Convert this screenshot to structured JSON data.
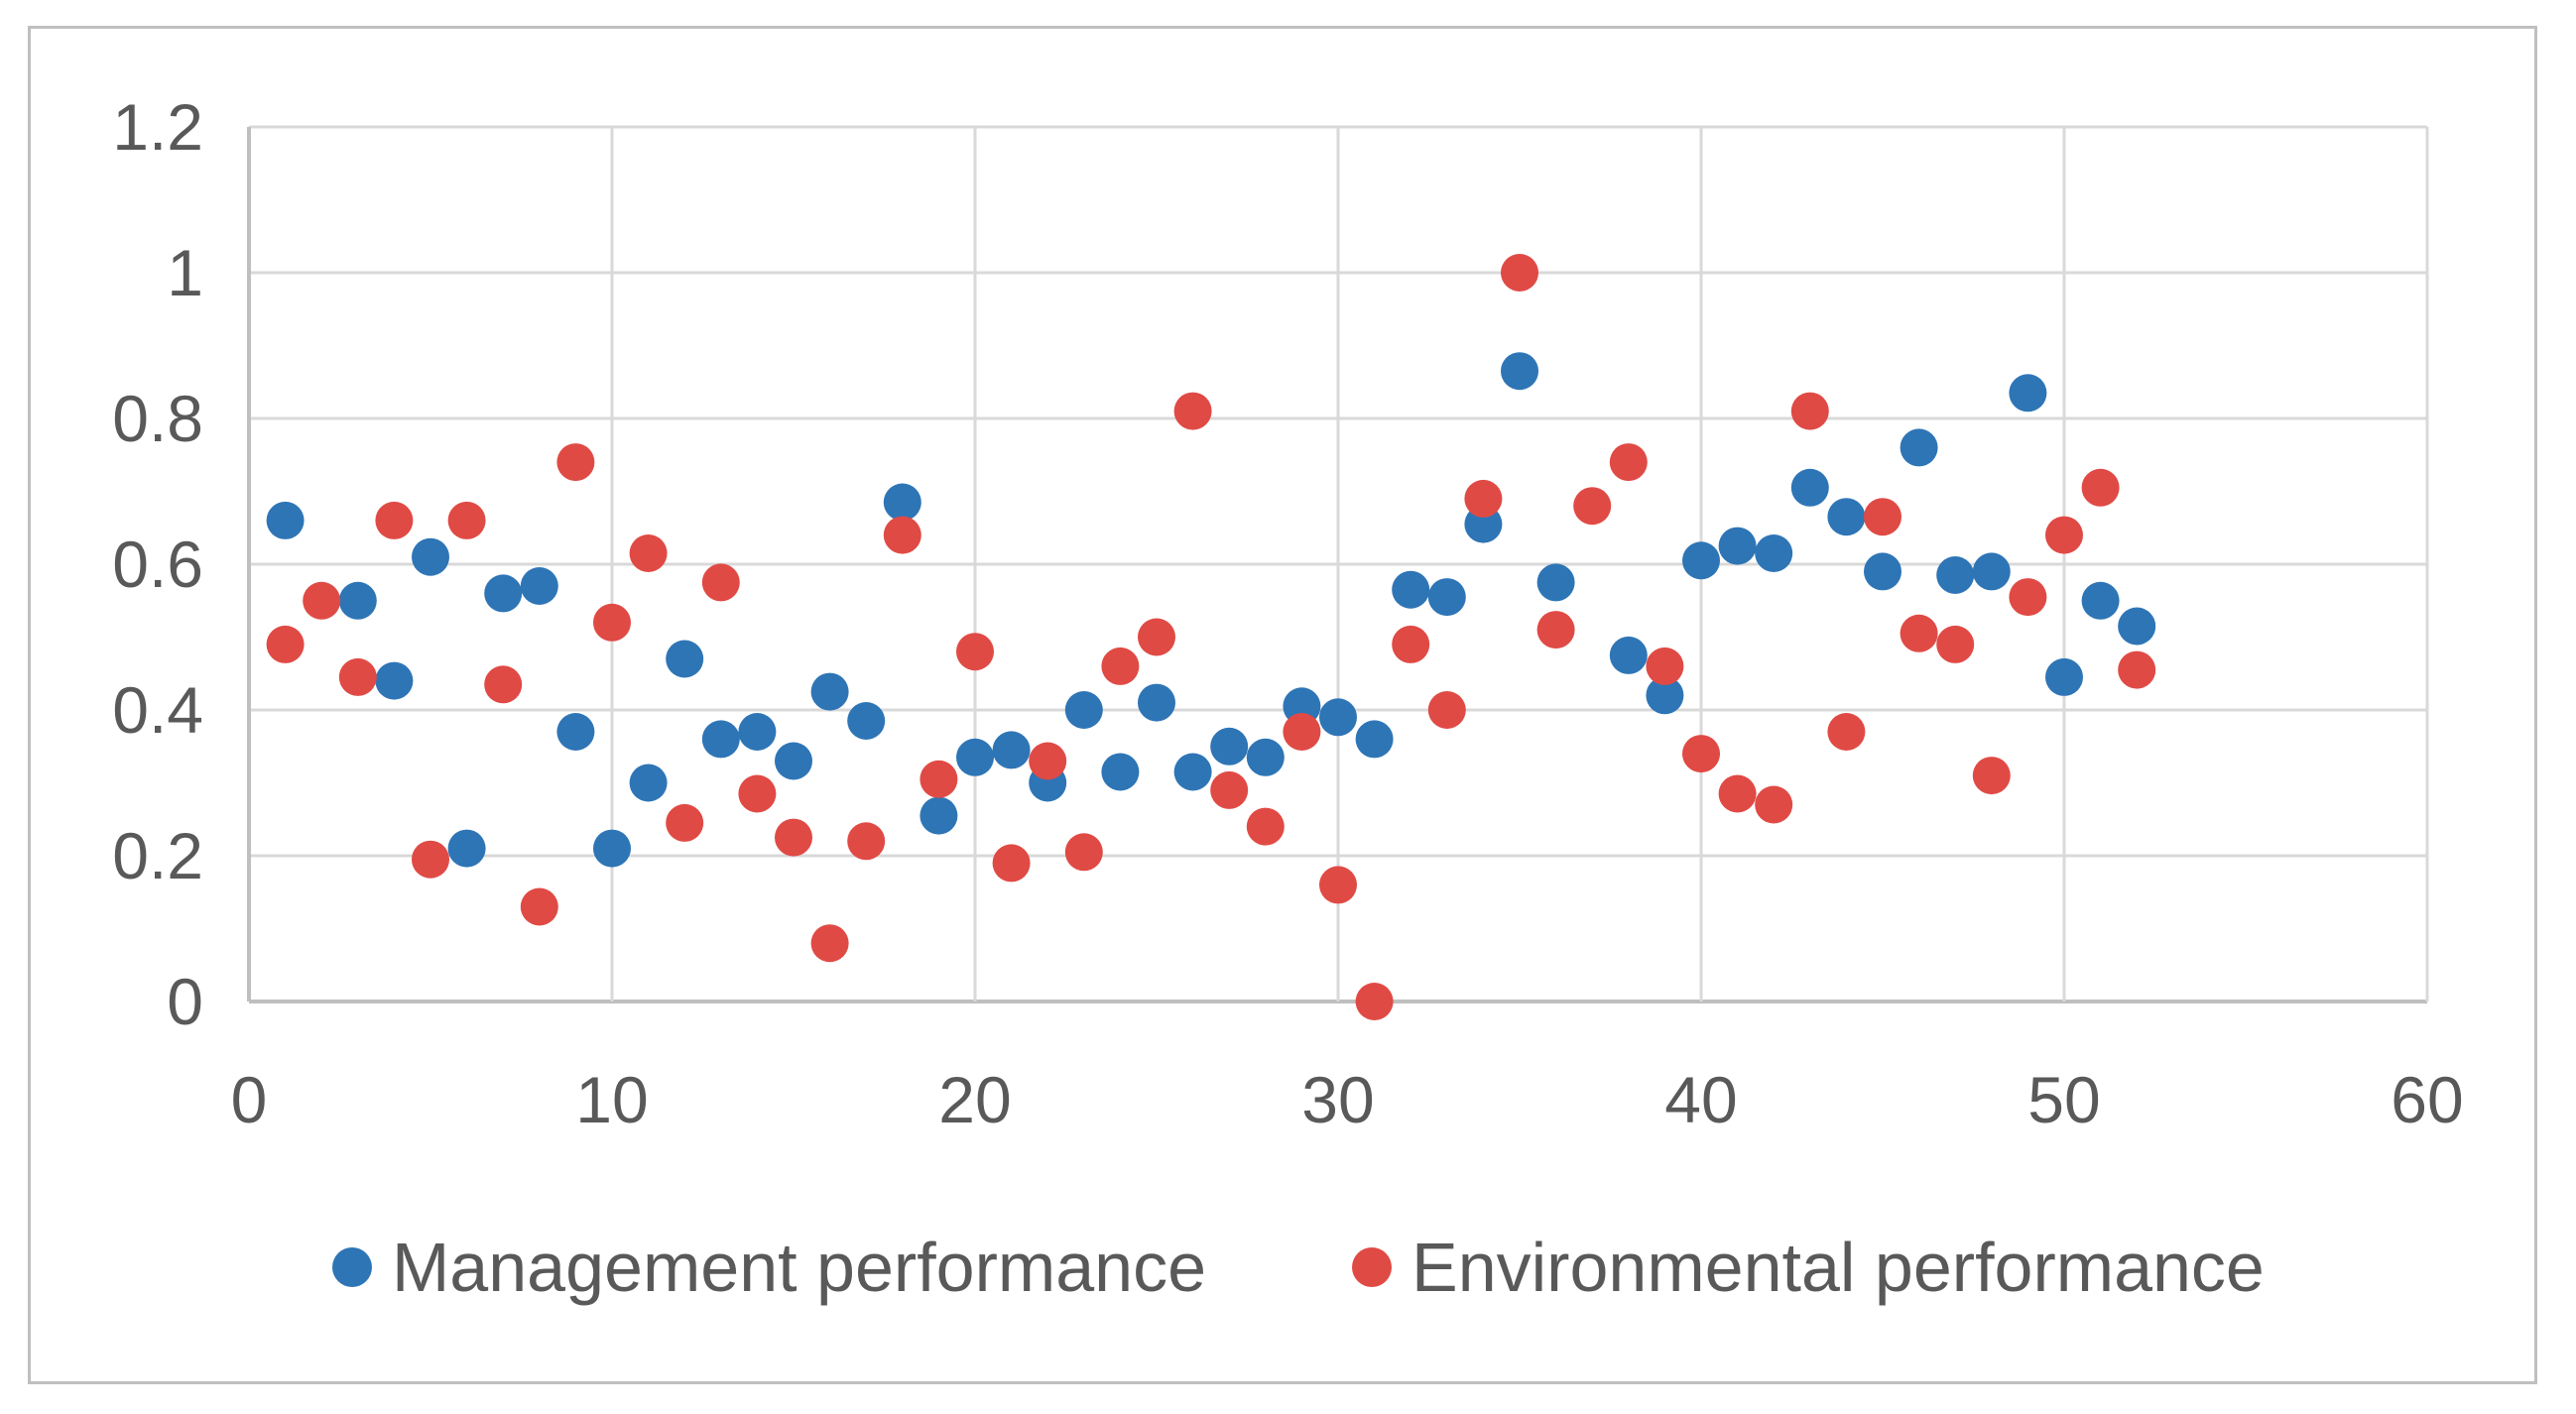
{
  "figure": {
    "background": "#FFFFFF",
    "border_color": "#BFBFBF",
    "grid_color": "#D9D9D9",
    "axis_color": "#BFBFBF",
    "tick_text_color": "#595959"
  },
  "chart_data": {
    "type": "scatter",
    "title": "",
    "xlabel": "",
    "ylabel": "",
    "xlim": [
      0,
      60
    ],
    "ylim": [
      0,
      1.2
    ],
    "x_ticks": [
      0,
      10,
      20,
      30,
      40,
      50,
      60
    ],
    "x_tick_labels": [
      "0",
      "10",
      "20",
      "30",
      "40",
      "50",
      "60"
    ],
    "y_ticks": [
      0,
      0.2,
      0.4,
      0.6,
      0.8,
      1,
      1.2
    ],
    "y_tick_labels": [
      "0",
      "0.2",
      "0.4",
      "0.6",
      "0.8",
      "1",
      "1.2"
    ],
    "grid": true,
    "legend_position": "bottom",
    "marker_radius": 19,
    "series": [
      {
        "name": "Management performance",
        "color": "#2E75B6",
        "points": [
          [
            1,
            0.66
          ],
          [
            3,
            0.55
          ],
          [
            4,
            0.44
          ],
          [
            5,
            0.61
          ],
          [
            6,
            0.21
          ],
          [
            7,
            0.56
          ],
          [
            8,
            0.57
          ],
          [
            9,
            0.37
          ],
          [
            10,
            0.21
          ],
          [
            11,
            0.3
          ],
          [
            12,
            0.47
          ],
          [
            13,
            0.36
          ],
          [
            14,
            0.37
          ],
          [
            15,
            0.33
          ],
          [
            16,
            0.425
          ],
          [
            17,
            0.385
          ],
          [
            18,
            0.685
          ],
          [
            19,
            0.255
          ],
          [
            20,
            0.335
          ],
          [
            21,
            0.345
          ],
          [
            22,
            0.3
          ],
          [
            23,
            0.4
          ],
          [
            24,
            0.315
          ],
          [
            25,
            0.41
          ],
          [
            26,
            0.315
          ],
          [
            27,
            0.35
          ],
          [
            28,
            0.335
          ],
          [
            29,
            0.405
          ],
          [
            30,
            0.39
          ],
          [
            31,
            0.36
          ],
          [
            32,
            0.565
          ],
          [
            33,
            0.555
          ],
          [
            34,
            0.655
          ],
          [
            35,
            0.865
          ],
          [
            36,
            0.575
          ],
          [
            38,
            0.475
          ],
          [
            39,
            0.42
          ],
          [
            40,
            0.605
          ],
          [
            41,
            0.625
          ],
          [
            42,
            0.615
          ],
          [
            43,
            0.705
          ],
          [
            44,
            0.665
          ],
          [
            45,
            0.59
          ],
          [
            46,
            0.76
          ],
          [
            47,
            0.585
          ],
          [
            48,
            0.59
          ],
          [
            49,
            0.835
          ],
          [
            50,
            0.445
          ],
          [
            51,
            0.55
          ],
          [
            52,
            0.515
          ]
        ]
      },
      {
        "name": "Environmental performance",
        "color": "#E04A45",
        "points": [
          [
            1,
            0.49
          ],
          [
            2,
            0.55
          ],
          [
            3,
            0.445
          ],
          [
            4,
            0.66
          ],
          [
            5,
            0.195
          ],
          [
            6,
            0.66
          ],
          [
            7,
            0.435
          ],
          [
            8,
            0.13
          ],
          [
            9,
            0.74
          ],
          [
            10,
            0.52
          ],
          [
            11,
            0.615
          ],
          [
            12,
            0.245
          ],
          [
            13,
            0.575
          ],
          [
            14,
            0.285
          ],
          [
            15,
            0.225
          ],
          [
            16,
            0.08
          ],
          [
            17,
            0.22
          ],
          [
            18,
            0.64
          ],
          [
            19,
            0.305
          ],
          [
            20,
            0.48
          ],
          [
            21,
            0.19
          ],
          [
            22,
            0.33
          ],
          [
            23,
            0.205
          ],
          [
            24,
            0.46
          ],
          [
            25,
            0.5
          ],
          [
            26,
            0.81
          ],
          [
            27,
            0.29
          ],
          [
            28,
            0.24
          ],
          [
            29,
            0.37
          ],
          [
            30,
            0.16
          ],
          [
            31,
            0.0
          ],
          [
            32,
            0.49
          ],
          [
            33,
            0.4
          ],
          [
            34,
            0.69
          ],
          [
            35,
            1.0
          ],
          [
            36,
            0.51
          ],
          [
            37,
            0.68
          ],
          [
            38,
            0.74
          ],
          [
            39,
            0.46
          ],
          [
            40,
            0.34
          ],
          [
            41,
            0.285
          ],
          [
            42,
            0.27
          ],
          [
            43,
            0.81
          ],
          [
            44,
            0.37
          ],
          [
            45,
            0.665
          ],
          [
            46,
            0.505
          ],
          [
            47,
            0.49
          ],
          [
            48,
            0.31
          ],
          [
            49,
            0.555
          ],
          [
            50,
            0.64
          ],
          [
            51,
            0.705
          ],
          [
            52,
            0.455
          ]
        ]
      }
    ]
  }
}
